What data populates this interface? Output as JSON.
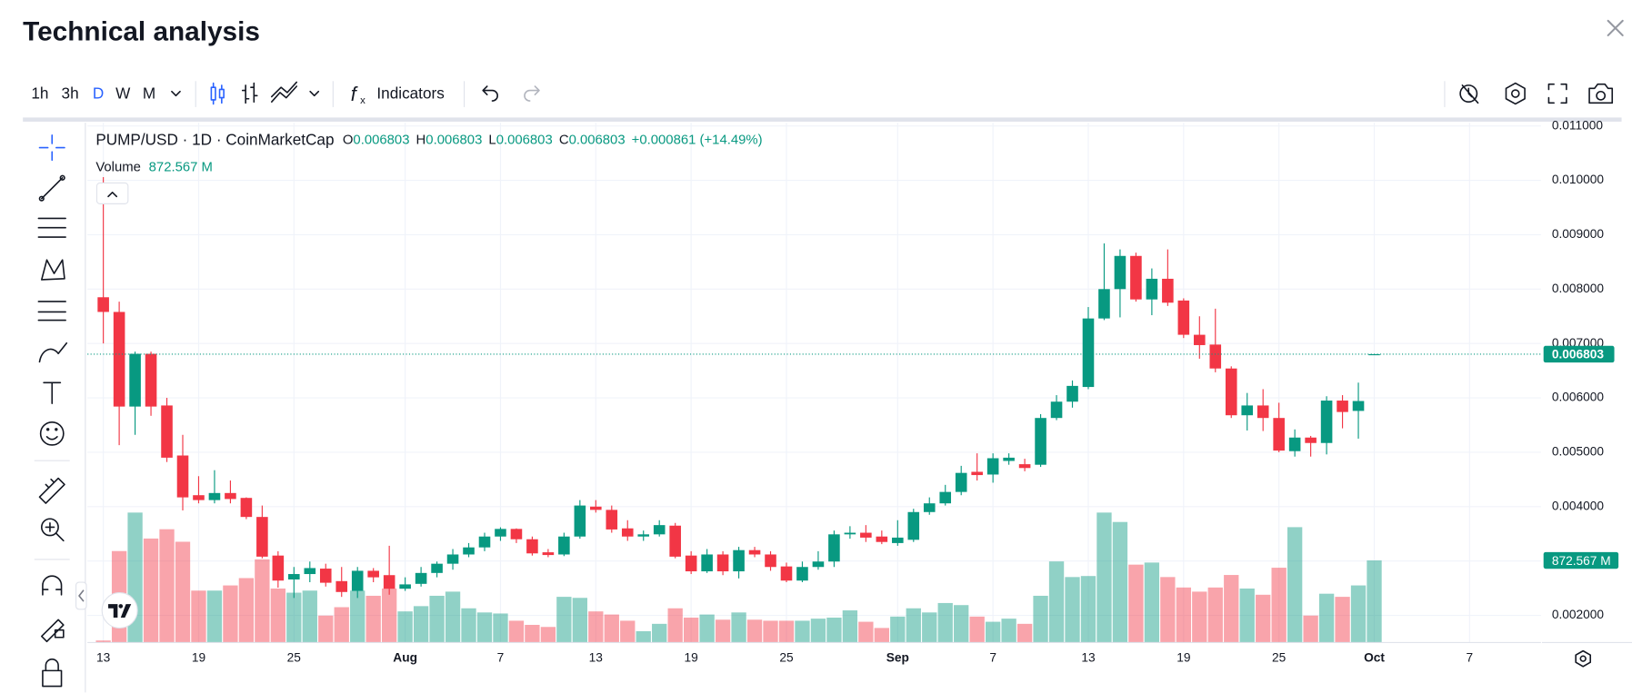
{
  "header": {
    "title": "Technical analysis"
  },
  "toolbar": {
    "intervals": [
      "1h",
      "3h",
      "D",
      "W",
      "M"
    ],
    "active_interval": "D",
    "indicators": "Indicators"
  },
  "chart_data": {
    "type": "candlestick",
    "symbol": "PUMP/USD · 1D · CoinMarketCap",
    "ohlc_legend": [
      [
        "O",
        "0.006803"
      ],
      [
        "H",
        "0.006803"
      ],
      [
        "L",
        "0.006803"
      ],
      [
        "C",
        "0.006803"
      ]
    ],
    "change": "+0.000861 (+14.49%)",
    "volume_title": "Volume",
    "volume_label": "872.567 M",
    "colors": {
      "up": "#089981",
      "down": "#f23645"
    },
    "x": [
      "07-13",
      "07-14",
      "07-15",
      "07-16",
      "07-17",
      "07-18",
      "07-19",
      "07-20",
      "07-21",
      "07-22",
      "07-23",
      "07-24",
      "07-25",
      "07-26",
      "07-27",
      "07-28",
      "07-29",
      "07-30",
      "07-31",
      "08-01",
      "08-02",
      "08-03",
      "08-04",
      "08-05",
      "08-06",
      "08-07",
      "08-08",
      "08-09",
      "08-10",
      "08-11",
      "08-12",
      "08-13",
      "08-14",
      "08-15",
      "08-16",
      "08-17",
      "08-18",
      "08-19",
      "08-20",
      "08-21",
      "08-22",
      "08-23",
      "08-24",
      "08-25",
      "08-26",
      "08-27",
      "08-28",
      "08-29",
      "08-30",
      "08-31",
      "09-01",
      "09-02",
      "09-03",
      "09-04",
      "09-05",
      "09-06",
      "09-07",
      "09-08",
      "09-09",
      "09-10",
      "09-11",
      "09-12",
      "09-13",
      "09-14",
      "09-15",
      "09-16",
      "09-17",
      "09-18",
      "09-19",
      "09-20",
      "09-21",
      "09-22",
      "09-23",
      "09-24",
      "09-25",
      "09-26",
      "09-27",
      "09-28",
      "09-29",
      "09-30",
      "10-01"
    ],
    "open": [
      0.00785,
      0.00758,
      0.00584,
      0.00681,
      0.00586,
      0.00494,
      0.00421,
      0.00412,
      0.00425,
      0.00416,
      0.00381,
      0.0031,
      0.00266,
      0.00276,
      0.00286,
      0.00263,
      0.00245,
      0.00282,
      0.00274,
      0.00249,
      0.00258,
      0.00278,
      0.00295,
      0.00312,
      0.00325,
      0.00345,
      0.00359,
      0.0034,
      0.00316,
      0.00312,
      0.00345,
      0.004,
      0.00394,
      0.0036,
      0.00345,
      0.00349,
      0.00365,
      0.0031,
      0.00281,
      0.00312,
      0.00281,
      0.0032,
      0.00312,
      0.0029,
      0.00264,
      0.00289,
      0.00299,
      0.00349,
      0.00352,
      0.00345,
      0.00333,
      0.00339,
      0.0039,
      0.00406,
      0.00427,
      0.00464,
      0.00459,
      0.00484,
      0.00478,
      0.00477,
      0.00563,
      0.00593,
      0.0062,
      0.00746,
      0.008,
      0.00861,
      0.00781,
      0.00819,
      0.00779,
      0.00716,
      0.00698,
      0.00654,
      0.00568,
      0.00586,
      0.00563,
      0.00502,
      0.00527,
      0.00517,
      0.00595,
      0.00576,
      0.006803
    ],
    "high": [
      0.01006,
      0.00777,
      0.00685,
      0.00685,
      0.006,
      0.00532,
      0.00456,
      0.00467,
      0.00448,
      0.00417,
      0.00402,
      0.00318,
      0.00289,
      0.00299,
      0.00295,
      0.00289,
      0.00289,
      0.00287,
      0.00328,
      0.0027,
      0.00289,
      0.00299,
      0.00322,
      0.00333,
      0.00352,
      0.00362,
      0.0036,
      0.00345,
      0.00322,
      0.00352,
      0.00412,
      0.00412,
      0.00402,
      0.00375,
      0.00356,
      0.00375,
      0.0037,
      0.00318,
      0.00322,
      0.00318,
      0.00326,
      0.00326,
      0.00318,
      0.00297,
      0.00299,
      0.00318,
      0.00356,
      0.00364,
      0.00366,
      0.00356,
      0.00375,
      0.00396,
      0.00417,
      0.0044,
      0.00475,
      0.00498,
      0.00498,
      0.00498,
      0.00488,
      0.0057,
      0.00605,
      0.00632,
      0.00767,
      0.00884,
      0.00873,
      0.00867,
      0.00838,
      0.00873,
      0.00783,
      0.0075,
      0.00764,
      0.00658,
      0.00609,
      0.00616,
      0.00591,
      0.00542,
      0.0053,
      0.00603,
      0.00605,
      0.00628,
      0.006803
    ],
    "low": [
      0.007,
      0.00513,
      0.00532,
      0.00567,
      0.00482,
      0.00393,
      0.00406,
      0.00406,
      0.00406,
      0.00377,
      0.00305,
      0.00251,
      0.00232,
      0.00261,
      0.00253,
      0.00234,
      0.00232,
      0.00261,
      0.00238,
      0.00245,
      0.00253,
      0.0027,
      0.00284,
      0.00307,
      0.00318,
      0.00337,
      0.00333,
      0.0031,
      0.00307,
      0.00309,
      0.00341,
      0.00389,
      0.00352,
      0.00337,
      0.00337,
      0.00345,
      0.00305,
      0.00276,
      0.00278,
      0.00274,
      0.00268,
      0.00307,
      0.00282,
      0.00261,
      0.00261,
      0.00284,
      0.00289,
      0.00341,
      0.00335,
      0.00331,
      0.00328,
      0.00335,
      0.00385,
      0.00402,
      0.00421,
      0.00448,
      0.00444,
      0.00477,
      0.00465,
      0.00473,
      0.00559,
      0.00582,
      0.00616,
      0.00743,
      0.00748,
      0.00777,
      0.00752,
      0.00769,
      0.0071,
      0.00672,
      0.00647,
      0.00563,
      0.0054,
      0.00539,
      0.005,
      0.00492,
      0.00492,
      0.00496,
      0.00544,
      0.00525,
      0.006803
    ],
    "close": [
      0.00758,
      0.00584,
      0.00681,
      0.00584,
      0.0049,
      0.00417,
      0.00412,
      0.00425,
      0.00414,
      0.00381,
      0.00308,
      0.00264,
      0.00276,
      0.00287,
      0.0026,
      0.00243,
      0.00282,
      0.0027,
      0.00249,
      0.00257,
      0.00278,
      0.00295,
      0.00312,
      0.00325,
      0.00345,
      0.00359,
      0.0034,
      0.00314,
      0.00311,
      0.00345,
      0.00402,
      0.00394,
      0.00358,
      0.00345,
      0.00349,
      0.00366,
      0.00308,
      0.00281,
      0.00312,
      0.00281,
      0.0032,
      0.00312,
      0.00289,
      0.00264,
      0.00289,
      0.00299,
      0.00349,
      0.00352,
      0.00343,
      0.00335,
      0.00343,
      0.0039,
      0.00406,
      0.00427,
      0.00462,
      0.00458,
      0.00489,
      0.0049,
      0.00471,
      0.00563,
      0.00593,
      0.00622,
      0.00746,
      0.008,
      0.00861,
      0.00781,
      0.00819,
      0.00775,
      0.00716,
      0.00697,
      0.00654,
      0.00568,
      0.00586,
      0.00563,
      0.00503,
      0.00527,
      0.00517,
      0.00595,
      0.00574,
      0.005942,
      0.006803
    ],
    "volume": [
      22,
      972,
      1381,
      1105,
      1204,
      1071,
      552,
      552,
      607,
      685,
      884,
      574,
      530,
      552,
      287,
      376,
      552,
      497,
      574,
      331,
      387,
      497,
      541,
      364,
      320,
      309,
      232,
      188,
      166,
      486,
      475,
      331,
      298,
      232,
      121,
      199,
      364,
      265,
      298,
      243,
      320,
      243,
      232,
      232,
      232,
      254,
      265,
      342,
      221,
      155,
      276,
      364,
      320,
      420,
      398,
      276,
      221,
      254,
      199,
      497,
      862,
      696,
      707,
      1381,
      1281,
      828,
      850,
      696,
      585,
      541,
      585,
      718,
      574,
      508,
      795,
      1226,
      287,
      519,
      486,
      607,
      872.567
    ],
    "last_price": {
      "value": 0.006803,
      "label": "0.006803"
    },
    "ylim": [
      0.0015,
      0.01106
    ],
    "yticks": [
      {
        "value": 0.011,
        "label": "0.011000"
      },
      {
        "value": 0.01,
        "label": "0.010000"
      },
      {
        "value": 0.009,
        "label": "0.009000"
      },
      {
        "value": 0.008,
        "label": "0.008000"
      },
      {
        "value": 0.007,
        "label": "0.007000"
      },
      {
        "value": 0.006,
        "label": "0.006000"
      },
      {
        "value": 0.005,
        "label": "0.005000"
      },
      {
        "value": 0.004,
        "label": "0.004000"
      },
      {
        "value": 0.003,
        "label": "0.003000"
      },
      {
        "value": 0.002,
        "label": "0.002000"
      }
    ],
    "xlim": [
      "07-12",
      "10-11"
    ],
    "xticks": [
      {
        "value": "07-13",
        "label": "13"
      },
      {
        "value": "07-19",
        "label": "19"
      },
      {
        "value": "07-25",
        "label": "25"
      },
      {
        "value": "08-01",
        "label": "Aug"
      },
      {
        "value": "08-07",
        "label": "7"
      },
      {
        "value": "08-13",
        "label": "13"
      },
      {
        "value": "08-19",
        "label": "19"
      },
      {
        "value": "08-25",
        "label": "25"
      },
      {
        "value": "09-01",
        "label": "Sep"
      },
      {
        "value": "09-07",
        "label": "7"
      },
      {
        "value": "09-13",
        "label": "13"
      },
      {
        "value": "09-19",
        "label": "19"
      },
      {
        "value": "09-25",
        "label": "25"
      },
      {
        "value": "10-01",
        "label": "Oct"
      },
      {
        "value": "10-07",
        "label": "7"
      }
    ],
    "grid": true
  }
}
